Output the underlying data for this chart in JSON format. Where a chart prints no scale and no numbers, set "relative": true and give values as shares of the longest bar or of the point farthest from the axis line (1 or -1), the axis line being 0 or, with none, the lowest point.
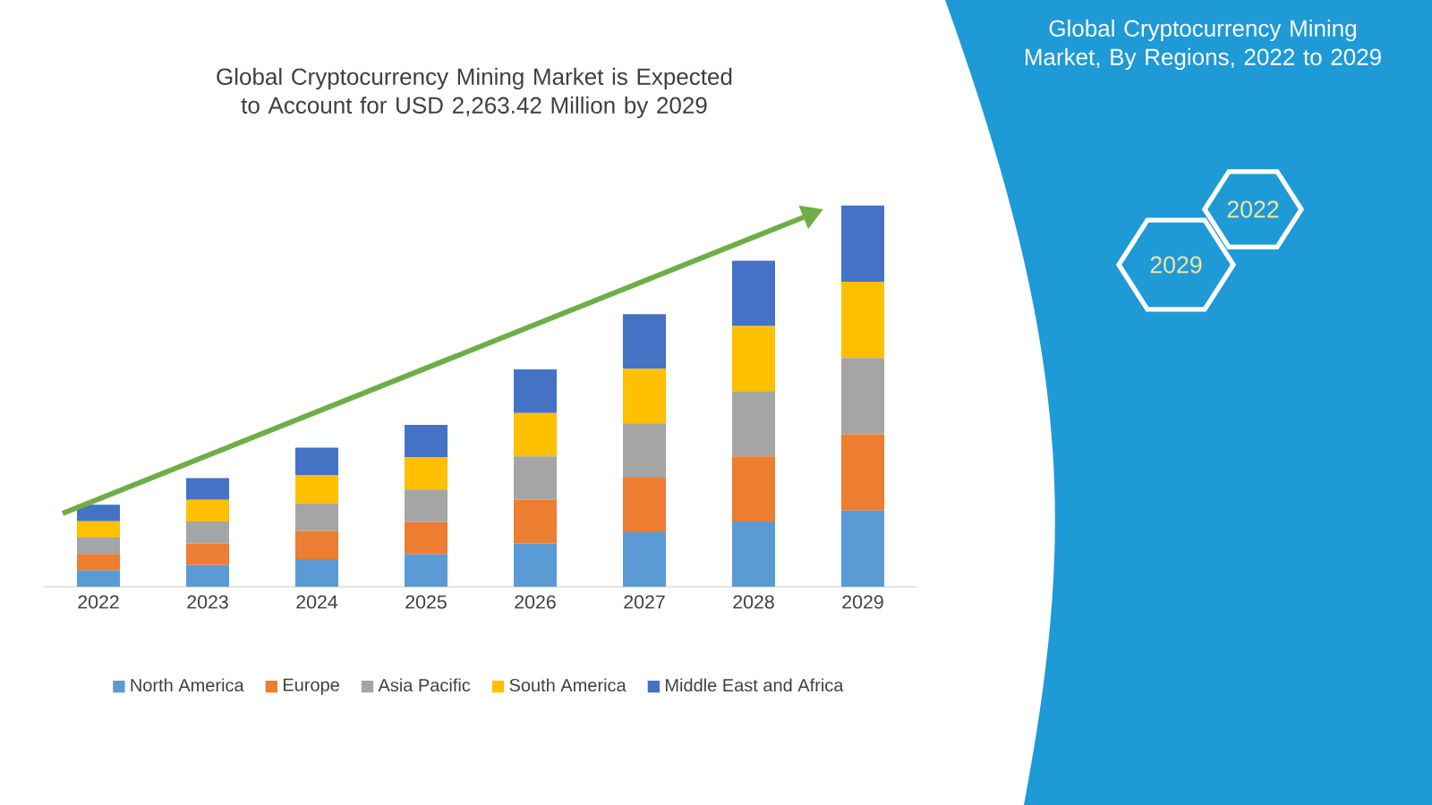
{
  "chart_data": {
    "type": "bar",
    "stacked": true,
    "relative": true,
    "legend": "bottom",
    "title": "Global Cryptocurrency Mining Market is Expected to Account for USD 2,263.42 Million by 2029",
    "categories": [
      "2022",
      "2023",
      "2024",
      "2025",
      "2026",
      "2027",
      "2028",
      "2029"
    ],
    "series": [
      {
        "name": "North America",
        "color": "#5b9bd5",
        "values": [
          0.043,
          0.057,
          0.073,
          0.085,
          0.114,
          0.143,
          0.171,
          0.2
        ]
      },
      {
        "name": "Europe",
        "color": "#ed7d31",
        "values": [
          0.043,
          0.057,
          0.073,
          0.085,
          0.114,
          0.143,
          0.171,
          0.2
        ]
      },
      {
        "name": "Asia Pacific",
        "color": "#a5a5a5",
        "values": [
          0.043,
          0.057,
          0.073,
          0.085,
          0.114,
          0.143,
          0.171,
          0.2
        ]
      },
      {
        "name": "South America",
        "color": "#ffc000",
        "values": [
          0.043,
          0.057,
          0.073,
          0.085,
          0.114,
          0.143,
          0.171,
          0.2
        ]
      },
      {
        "name": "Middle East and Africa",
        "color": "#4472c4",
        "values": [
          0.043,
          0.057,
          0.073,
          0.085,
          0.114,
          0.143,
          0.171,
          0.2
        ]
      }
    ],
    "annotations": [
      "Global Cryptocurrency Mining Market, By Regions, 2022 to 2029",
      "2022",
      "2029"
    ]
  }
}
